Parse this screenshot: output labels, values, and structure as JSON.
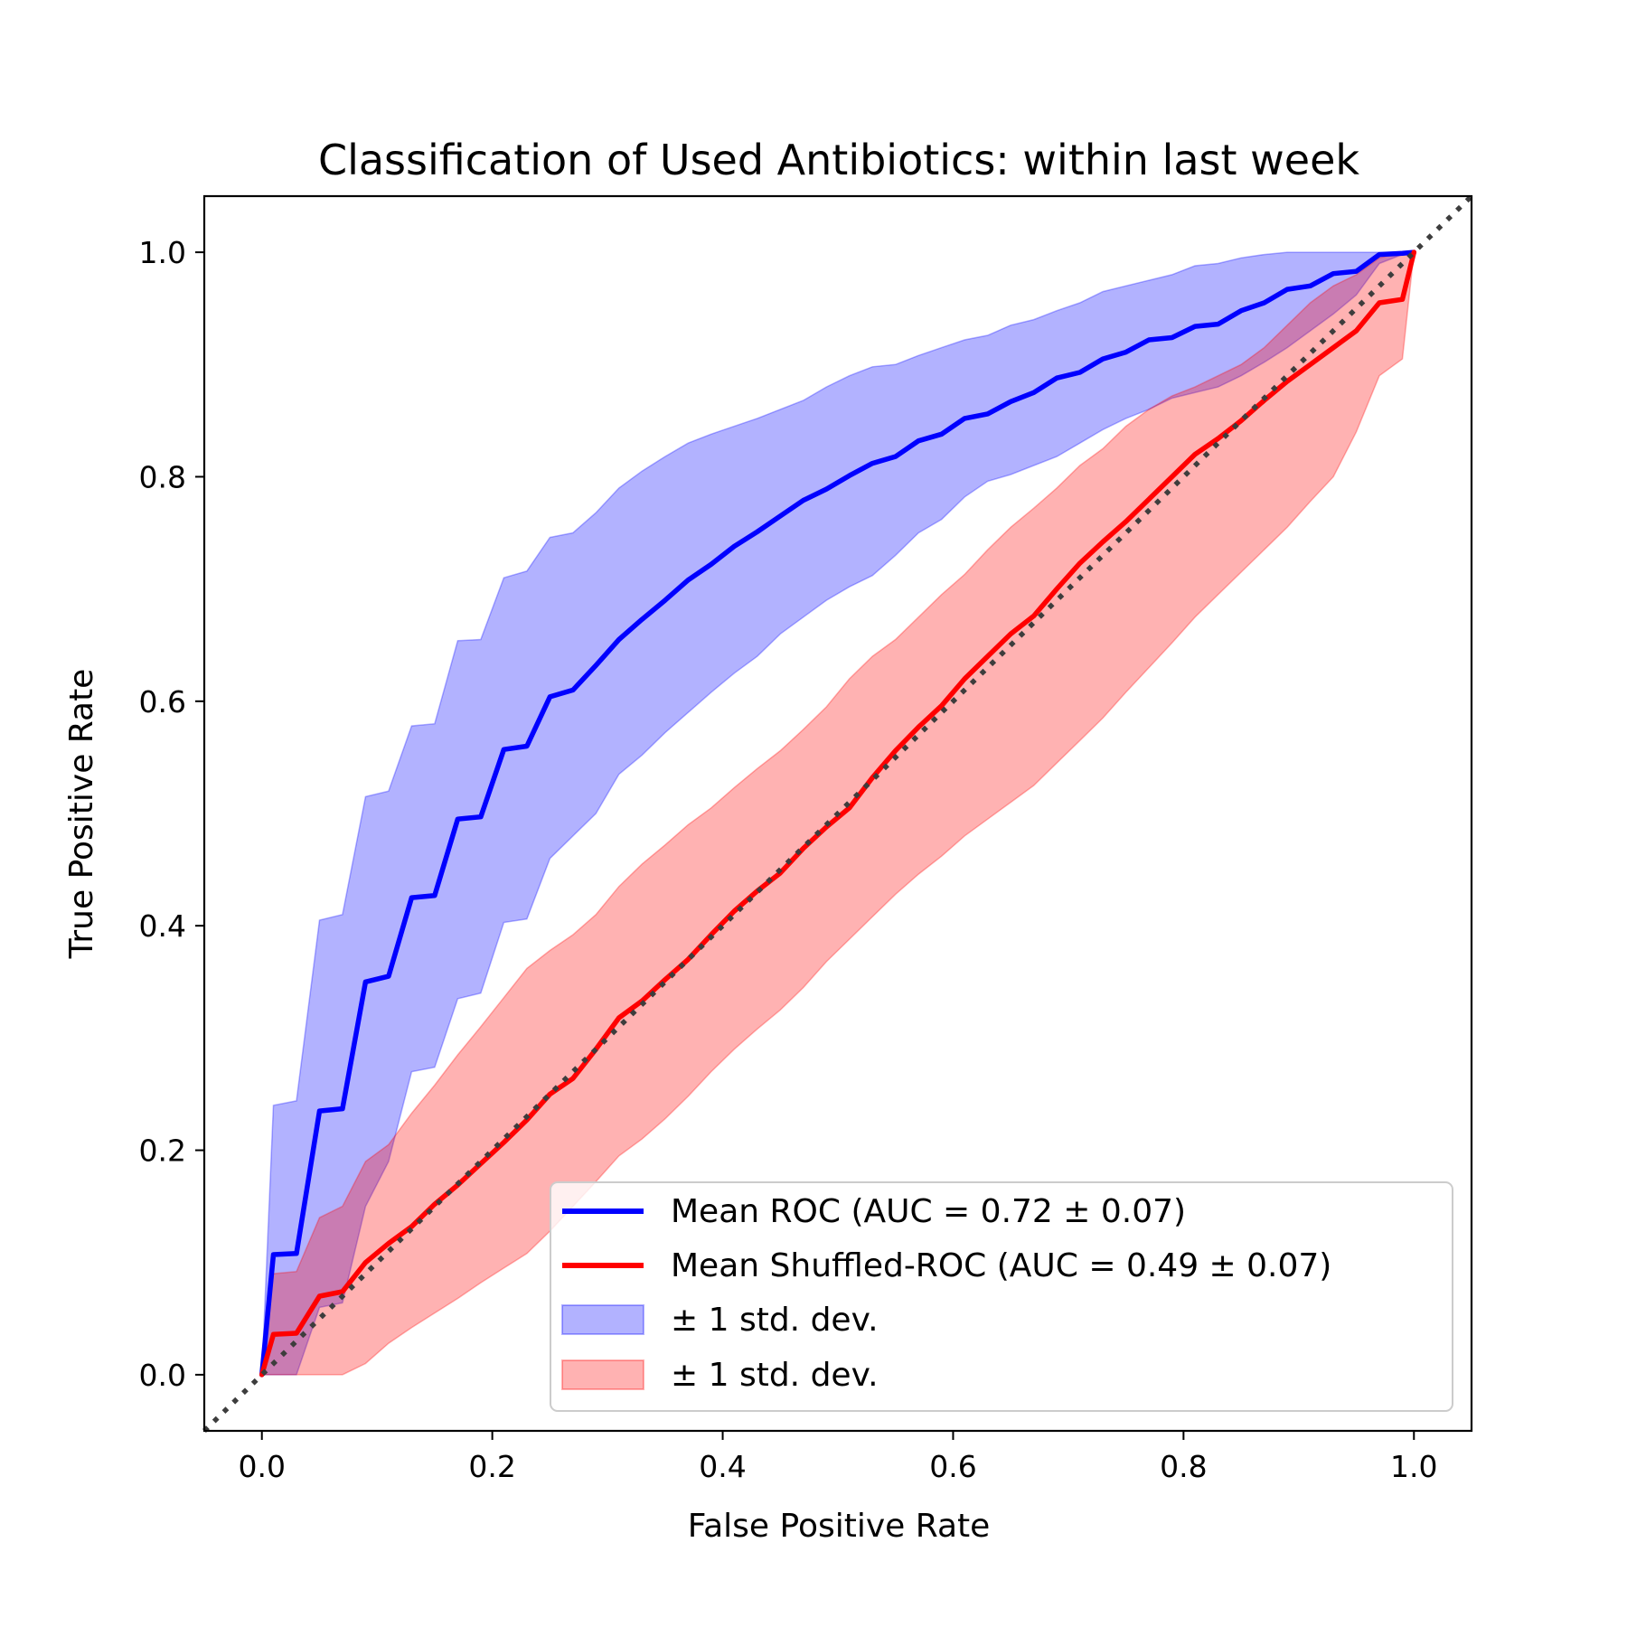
{
  "chart_data": {
    "type": "line",
    "title": "Classification of Used Antibiotics: within last week",
    "xlabel": "False Positive Rate",
    "ylabel": "True Positive Rate",
    "xlim": [
      -0.05,
      1.05
    ],
    "ylim": [
      -0.05,
      1.05
    ],
    "xticks": [
      "0.0",
      "0.2",
      "0.4",
      "0.6",
      "0.8",
      "1.0"
    ],
    "yticks": [
      "0.0",
      "0.2",
      "0.4",
      "0.6",
      "0.8",
      "1.0"
    ],
    "grid": false,
    "legend_position": "lower-right",
    "x": [
      0.0,
      0.01,
      0.03,
      0.05,
      0.07,
      0.09,
      0.11,
      0.13,
      0.15,
      0.17,
      0.19,
      0.21,
      0.23,
      0.25,
      0.27,
      0.29,
      0.31,
      0.33,
      0.35,
      0.37,
      0.39,
      0.41,
      0.43,
      0.45,
      0.47,
      0.49,
      0.51,
      0.53,
      0.55,
      0.57,
      0.59,
      0.61,
      0.63,
      0.65,
      0.67,
      0.69,
      0.71,
      0.73,
      0.75,
      0.77,
      0.79,
      0.81,
      0.83,
      0.85,
      0.87,
      0.89,
      0.91,
      0.93,
      0.95,
      0.97,
      0.99,
      1.0
    ],
    "series": [
      {
        "name": "Mean ROC (AUC = 0.72 ± 0.07)",
        "color": "#0000ff",
        "values": [
          0.0,
          0.107,
          0.108,
          0.235,
          0.237,
          0.35,
          0.355,
          0.425,
          0.427,
          0.495,
          0.497,
          0.557,
          0.56,
          0.604,
          0.61,
          0.632,
          0.655,
          0.673,
          0.69,
          0.708,
          0.722,
          0.738,
          0.751,
          0.765,
          0.779,
          0.789,
          0.801,
          0.812,
          0.818,
          0.832,
          0.838,
          0.852,
          0.856,
          0.867,
          0.875,
          0.888,
          0.893,
          0.905,
          0.911,
          0.922,
          0.924,
          0.934,
          0.936,
          0.948,
          0.955,
          0.967,
          0.97,
          0.981,
          0.983,
          0.998,
          0.999,
          1.0
        ]
      },
      {
        "name": "Mean Shuffled-ROC (AUC = 0.49 ± 0.07)",
        "color": "#ff0000",
        "values": [
          0.0,
          0.036,
          0.037,
          0.07,
          0.074,
          0.1,
          0.117,
          0.132,
          0.152,
          0.169,
          0.188,
          0.207,
          0.227,
          0.25,
          0.264,
          0.29,
          0.318,
          0.333,
          0.352,
          0.37,
          0.392,
          0.413,
          0.431,
          0.447,
          0.469,
          0.488,
          0.505,
          0.532,
          0.556,
          0.577,
          0.596,
          0.62,
          0.64,
          0.66,
          0.676,
          0.7,
          0.723,
          0.742,
          0.76,
          0.78,
          0.8,
          0.82,
          0.834,
          0.85,
          0.868,
          0.885,
          0.9,
          0.915,
          0.93,
          0.955,
          0.958,
          1.0
        ]
      }
    ],
    "bands": [
      {
        "name": "± 1 std. dev.",
        "color": "#0000ff",
        "opacity": 0.3,
        "upper": [
          0.0,
          0.24,
          0.244,
          0.405,
          0.41,
          0.515,
          0.52,
          0.578,
          0.58,
          0.654,
          0.655,
          0.71,
          0.716,
          0.746,
          0.75,
          0.768,
          0.79,
          0.805,
          0.818,
          0.83,
          0.838,
          0.845,
          0.852,
          0.86,
          0.868,
          0.88,
          0.89,
          0.898,
          0.9,
          0.908,
          0.915,
          0.922,
          0.926,
          0.935,
          0.94,
          0.948,
          0.955,
          0.965,
          0.97,
          0.975,
          0.98,
          0.988,
          0.99,
          0.995,
          0.998,
          1.0,
          1.0,
          1.0,
          1.0,
          1.0,
          1.0,
          1.0
        ],
        "lower": [
          0.0,
          0.0,
          0.0,
          0.06,
          0.064,
          0.15,
          0.19,
          0.27,
          0.274,
          0.335,
          0.34,
          0.403,
          0.406,
          0.46,
          0.48,
          0.5,
          0.535,
          0.552,
          0.572,
          0.59,
          0.608,
          0.625,
          0.64,
          0.66,
          0.675,
          0.69,
          0.702,
          0.712,
          0.73,
          0.75,
          0.762,
          0.782,
          0.796,
          0.802,
          0.81,
          0.818,
          0.83,
          0.842,
          0.852,
          0.86,
          0.87,
          0.875,
          0.88,
          0.89,
          0.902,
          0.915,
          0.93,
          0.945,
          0.962,
          0.99,
          0.998,
          1.0
        ]
      },
      {
        "name": "± 1 std. dev.",
        "color": "#ff0000",
        "opacity": 0.3,
        "upper": [
          0.0,
          0.09,
          0.092,
          0.14,
          0.15,
          0.19,
          0.205,
          0.233,
          0.258,
          0.285,
          0.31,
          0.336,
          0.362,
          0.378,
          0.392,
          0.41,
          0.435,
          0.455,
          0.472,
          0.49,
          0.505,
          0.523,
          0.54,
          0.556,
          0.575,
          0.595,
          0.62,
          0.64,
          0.655,
          0.675,
          0.695,
          0.713,
          0.735,
          0.755,
          0.772,
          0.79,
          0.81,
          0.825,
          0.845,
          0.86,
          0.872,
          0.88,
          0.89,
          0.9,
          0.915,
          0.935,
          0.955,
          0.97,
          0.98,
          0.995,
          1.0,
          1.0
        ],
        "lower": [
          0.0,
          0.0,
          0.0,
          0.0,
          0.0,
          0.01,
          0.028,
          0.042,
          0.055,
          0.068,
          0.082,
          0.095,
          0.108,
          0.128,
          0.15,
          0.172,
          0.195,
          0.21,
          0.228,
          0.248,
          0.27,
          0.29,
          0.308,
          0.325,
          0.345,
          0.368,
          0.388,
          0.408,
          0.428,
          0.446,
          0.462,
          0.48,
          0.495,
          0.51,
          0.525,
          0.545,
          0.565,
          0.585,
          0.608,
          0.63,
          0.652,
          0.675,
          0.695,
          0.715,
          0.735,
          0.755,
          0.778,
          0.8,
          0.84,
          0.89,
          0.905,
          1.0
        ]
      }
    ],
    "reference_line": {
      "x": [
        -0.05,
        1.05
      ],
      "y": [
        -0.05,
        1.05
      ],
      "color": "#3d3d3d",
      "style": "dotted"
    },
    "legend": [
      {
        "label": "Mean ROC (AUC = 0.72 ± 0.07)",
        "kind": "line",
        "color": "#0000ff"
      },
      {
        "label": "Mean Shuffled-ROC (AUC = 0.49 ± 0.07)",
        "kind": "line",
        "color": "#ff0000"
      },
      {
        "label": "± 1 std. dev.",
        "kind": "patch",
        "color": "#0000ff"
      },
      {
        "label": "± 1 std. dev.",
        "kind": "patch",
        "color": "#ff0000"
      }
    ]
  }
}
